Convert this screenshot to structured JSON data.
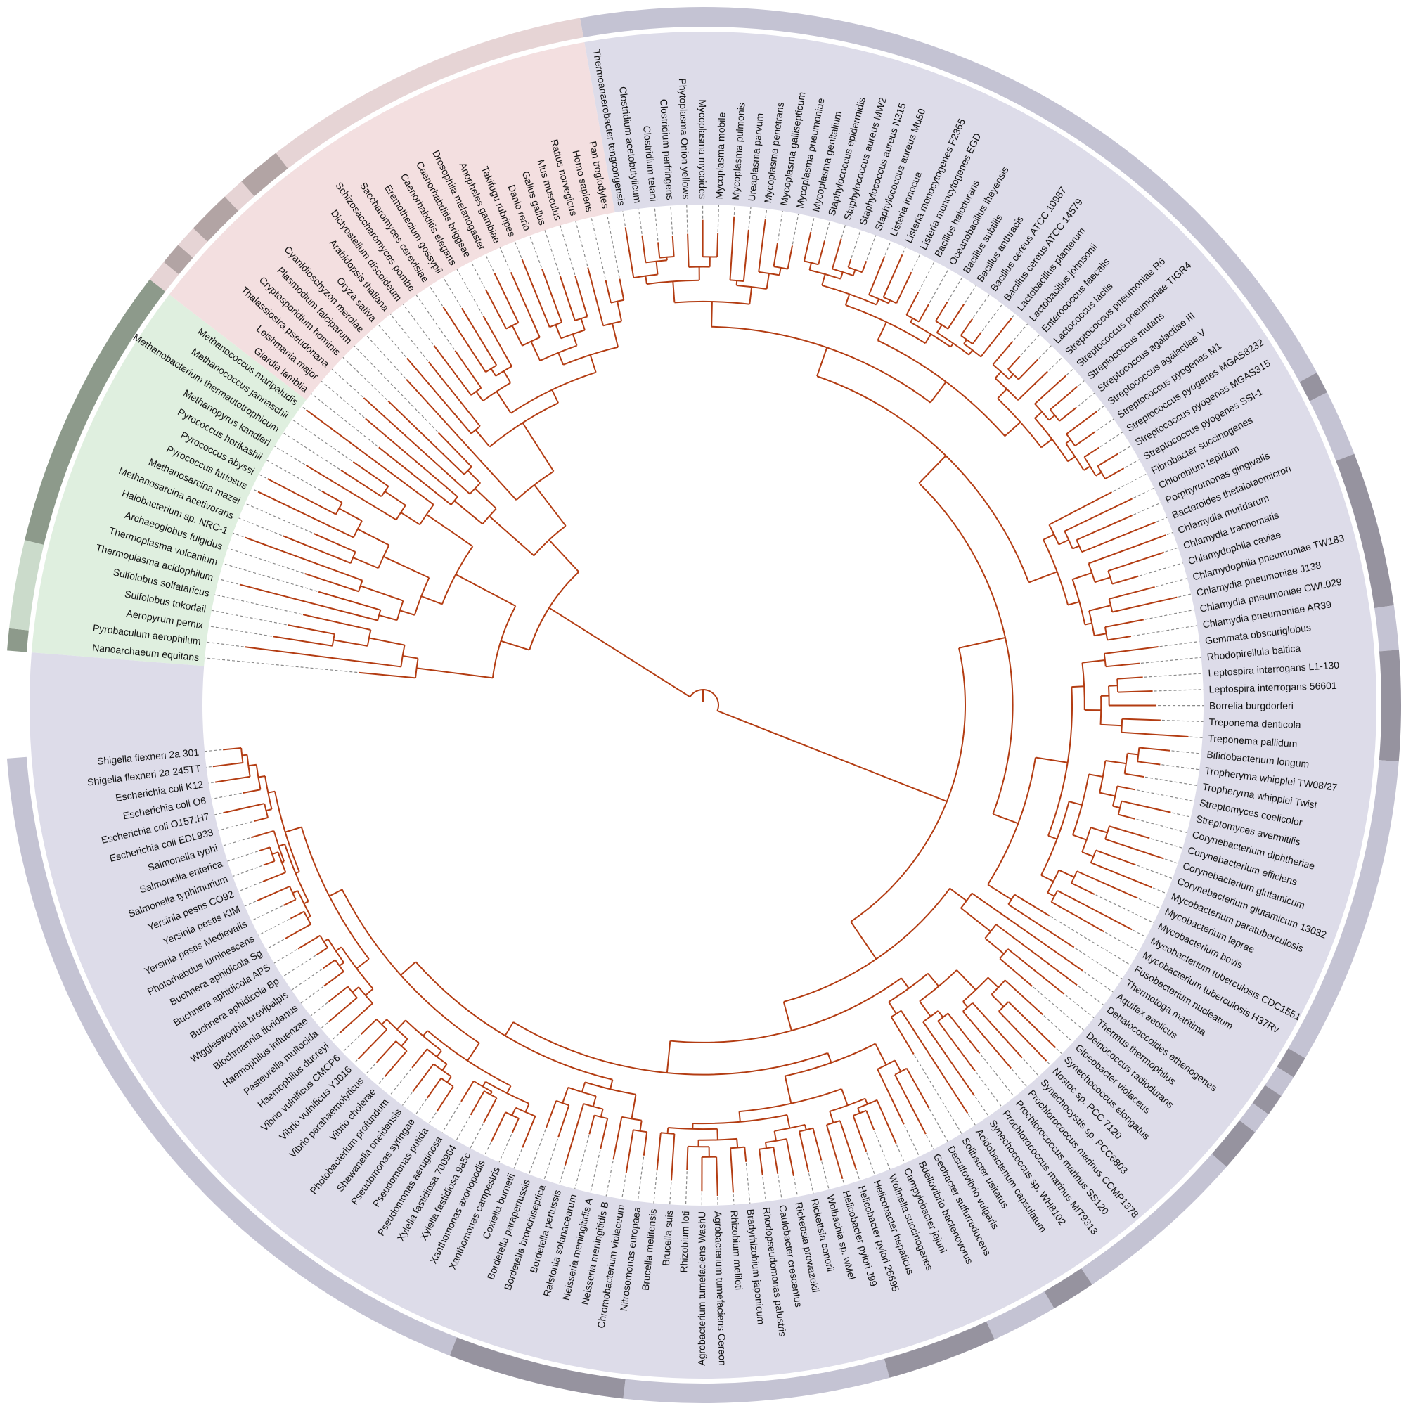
{
  "colors": {
    "branch": "#b33c12",
    "connector": "#8a8a8a",
    "label": "#111111"
  },
  "domains": [
    {
      "wedge_color": "#dfefdf",
      "leaves": [
        "Nanoarchaeum equitans",
        "Pyrobaculum aerophilum",
        "Aeropyrum pernix",
        "Sulfolobus tokodaii",
        "Sulfolobus solfataricus",
        "Thermoplasma acidophilum",
        "Thermoplasma volcanium",
        "Archaeoglobus fulgidus",
        "Halobacterium sp. NRC-1",
        "Methanosarcina acetivorans",
        "Methanosarcina mazei",
        "Pyrococcus furiosus",
        "Pyrococcus abyssi",
        "Pyrococcus horikashii",
        "Methanopyrus kandleri",
        "Methanobacterium thermautotrophicum",
        "Methanococcus jannaschii",
        "Methanococcus maripaludis"
      ]
    },
    {
      "wedge_color": "#f3dfe0",
      "leaves": [
        "Giardia lamblia",
        "Leishmania major",
        "Thalassiosira pseudonana",
        "Cryptosporidium hominis",
        "Plasmodium falciparum",
        "Cyanidioschyzon merolae",
        "Oryza sativa",
        "Arabidopsis thaliana",
        "Dictyostelium discoideum",
        "Schizosaccharomyces pombe",
        "Saccharomyces cerevisiae",
        "Eremothecium gossypii",
        "Caenorhabditis elegans",
        "Caenorhabditis briggsae",
        "Drosophila melanogaster",
        "Anopheles gambiae",
        "Takifugu rubripes",
        "Danio rerio",
        "Gallus gallus",
        "Mus musculus",
        "Rattus norvegicus",
        "Homo sapiens",
        "Pan troglodytes"
      ]
    },
    {
      "wedge_color": "#dddce9",
      "leaves": [
        "Thermoanaerobacter tengcongensis",
        "Clostridium acetobutylicum",
        "Clostridium tetani",
        "Clostridium perfringens",
        "Phytoplasma Onion yellows",
        "Mycoplasma mycoides",
        "Mycoplasma mobile",
        "Mycoplasma pulmonis",
        "Ureaplasma parvum",
        "Mycoplasma penetrans",
        "Mycoplasma gallisepticum",
        "Mycoplasma pneumoniae",
        "Mycoplasma genitalium",
        "Staphylococcus epidermidis",
        "Staphylococcus aureus MW2",
        "Staphylococcus aureus N315",
        "Staphylococcus aureus Mu50",
        "Listeria innocua",
        "Listeria monocytogenes F2365",
        "Listeria monocytogenes EGD",
        "Bacillus halodurans",
        "Oceanobacillus iheyensis",
        "Bacillus subtilis",
        "Bacillus anthracis",
        "Bacillus cereus ATCC 10987",
        "Bacillus cereus ATCC 14579",
        "Lactobacillus planterum",
        "Lactobacillus johnsonii",
        "Enterococcus faecalis",
        "Lactococcus lactis",
        "Streptococcus pneumoniae R6",
        "Streptococcus pneumoniae TIGR4",
        "Streptococcus mutans",
        "Streptococcus agalactiae III",
        "Streptococcus agalactiae V",
        "Streptococcus pyogenes M1",
        "Streptococcus pyogenes MGAS8232",
        "Streptococcus pyogenes MGAS315",
        "Streptococcus pyogenes SSI-1",
        "Fibrobacter succinogenes",
        "Chlorobium tepidum",
        "Porphyromonas gingivalis",
        "Bacteroides thetaiotaomicron",
        "Chlamydia muridarum",
        "Chlamydia trachomatis",
        "Chlamydophila caviae",
        "Chlamydophila pneumoniae TW183",
        "Chlamydia pneumoniae J138",
        "Chlamydia pneumoniae CWL029",
        "Chlamydia pneumoniae AR39",
        "Gemmata obscuriglobus",
        "Rhodopirellula baltica",
        "Leptospira interrogans L1-130",
        "Leptospira interrogans 56601",
        "Borrelia burgdorferi",
        "Treponema denticola",
        "Treponema pallidum",
        "Bifidobacterium longum",
        "Tropheryma whipplei TW08/27",
        "Tropheryma whipplei Twist",
        "Streptomyces coelicolor",
        "Streptomyces avermitilis",
        "Corynebacterium diphtheriae",
        "Corynebacterium efficiens",
        "Corynebacterium glutamicum",
        "Corynebacterium glutamicum 13032",
        "Mycobacterium paratuberculosis",
        "Mycobacterium leprae",
        "Mycobacterium bovis",
        "Mycobacterium tuberculosis CDC1551",
        "Mycobacterium tuberculosis H37Rv",
        "Fusobacterium nucleatum",
        "Thermotoga maritima",
        "Aquifex aeolicus",
        "Dehalococcoides ethenogenes",
        "Thermus thermophilus",
        "Deinococcus radiodurans",
        "Gloeobacter violaceus",
        "Synechococcus elongatus",
        "Nostoc sp. PCC 7120",
        "Synechocystis sp. PCC6803",
        "Prochlorococcus marinus CCMP1378",
        "Prochlorococcus marinus SS120",
        "Prochlorococcus marinus MIT9313",
        "Synechococcus sp. WH8102",
        "Acidobacterium capsulatum",
        "Solibacter usitatus",
        "Desulfovibrio vulgaris",
        "Geobacter sulfurreducens",
        "Bdellovibrio bacteriovorus",
        "Campylobacter jejuni",
        "Wolinella succinogenes",
        "Helicobacter hepaticus",
        "Helicobacter pylori 26695",
        "Helicobacter pylori J99",
        "Wolbachia sp. wMel",
        "Rickettsia conorii",
        "Rickettsia prowazekii",
        "Caulobacter crescentus",
        "Rhodopseudomonas palustris",
        "Bradyrhizobium japonicum",
        "Rhizobium meliloti",
        "Agrobacterium tumefaciens Cereon",
        "Agrobacterium tumefaciens WashU",
        "Rhizobium loti",
        "Brucella suis",
        "Brucella melitensis",
        "Nitrosomonas europaea",
        "Chromobacterium violaceum",
        "Neisseria meningitidis B",
        "Neisseria meningitidis A",
        "Ralstonia solanacearum",
        "Bordetella pertussis",
        "Bordetella bronchiseptica",
        "Bordetella parapertussis",
        "Coxiella burnetii",
        "Xanthomonas campestris",
        "Xanthomonas axonopodis",
        "Xylella fastidiosa 9a5c",
        "Xylella fastidiosa 700964",
        "Pseudomonas aeruginosa",
        "Pseudomonas putida",
        "Pseudomonas syringae",
        "Shewanella oneidensis",
        "Photobacterium profundum",
        "Vibrio cholerae",
        "Vibrio parahaemolyticus",
        "Vibrio vulnificus YJ016",
        "Vibrio vulnificus CMCP6",
        "Haemophilus ducreyi",
        "Pasteurella multocida",
        "Haemophilus influenzae",
        "Blochmannia floridanus",
        "Wigglesworthia brevipalpis",
        "Buchnera aphidicola Bp",
        "Buchnera aphidicola APS",
        "Buchnera aphidicola Sg",
        "Photorhabdus luminescens",
        "Yersinia pestis Medievalis",
        "Yersinia pestis KIM",
        "Yersinia pestis CO92",
        "Salmonella typhimurium",
        "Salmonella enterica",
        "Salmonella typhi",
        "Escherichia coli EDL933",
        "Escherichia coli O157:H7",
        "Escherichia coli O6",
        "Escherichia coli K12",
        "Shigella flexneri 2a 245TT",
        "Shigella flexneri 2a 301"
      ]
    }
  ],
  "ring_segments": [
    {
      "first": 0,
      "last": 0,
      "color": "#8d9a8b"
    },
    {
      "first": 1,
      "last": 4,
      "color": "#cbdbcb"
    },
    {
      "first": 5,
      "last": 17,
      "color": "#8d9a8b"
    },
    {
      "first": 18,
      "last": 18,
      "color": "#e6d4d5"
    },
    {
      "first": 19,
      "last": 19,
      "color": "#b2a4a4"
    },
    {
      "first": 20,
      "last": 20,
      "color": "#e6d4d5"
    },
    {
      "first": 21,
      "last": 22,
      "color": "#b2a4a4"
    },
    {
      "first": 23,
      "last": 23,
      "color": "#e6d4d5"
    },
    {
      "first": 24,
      "last": 25,
      "color": "#b2a4a4"
    },
    {
      "first": 26,
      "last": 40,
      "color": "#e6d4d5"
    },
    {
      "first": 41,
      "last": 79,
      "color": "#c4c3d3"
    },
    {
      "first": 80,
      "last": 80,
      "color": "#96939f"
    },
    {
      "first": 81,
      "last": 83,
      "color": "#c4c3d3"
    },
    {
      "first": 84,
      "last": 90,
      "color": "#96939f"
    },
    {
      "first": 91,
      "last": 92,
      "color": "#c4c3d3"
    },
    {
      "first": 93,
      "last": 97,
      "color": "#96939f"
    },
    {
      "first": 98,
      "last": 111,
      "color": "#c4c3d3"
    },
    {
      "first": 112,
      "last": 112,
      "color": "#96939f"
    },
    {
      "first": 113,
      "last": 113,
      "color": "#c4c3d3"
    },
    {
      "first": 114,
      "last": 114,
      "color": "#96939f"
    },
    {
      "first": 115,
      "last": 115,
      "color": "#c4c3d3"
    },
    {
      "first": 116,
      "last": 117,
      "color": "#96939f"
    },
    {
      "first": 118,
      "last": 125,
      "color": "#c4c3d3"
    },
    {
      "first": 126,
      "last": 127,
      "color": "#96939f"
    },
    {
      "first": 128,
      "last": 130,
      "color": "#c4c3d3"
    },
    {
      "first": 131,
      "last": 135,
      "color": "#96939f"
    },
    {
      "first": 136,
      "last": 147,
      "color": "#c4c3d3"
    },
    {
      "first": 148,
      "last": 155,
      "color": "#96939f"
    },
    {
      "first": 156,
      "last": 190,
      "color": "#c4c3d3"
    }
  ]
}
